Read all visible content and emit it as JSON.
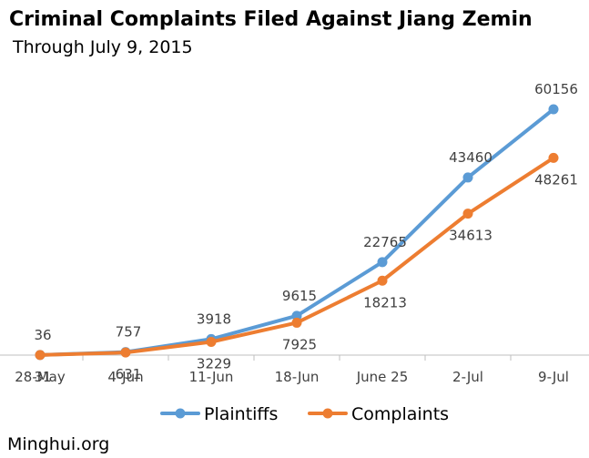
{
  "chart_data": {
    "type": "line",
    "title": "Criminal Complaints Filed Against Jiang Zemin",
    "subtitle": "Through July 9, 2015",
    "categories": [
      "28-May",
      "4-Jun",
      "11-Jun",
      "18-Jun",
      "June 25",
      "2-Jul",
      "9-Jul"
    ],
    "series": [
      {
        "name": "Plaintiffs",
        "values": [
          36,
          757,
          3918,
          9615,
          22765,
          43460,
          60156
        ]
      },
      {
        "name": "Complaints",
        "values": [
          31,
          631,
          3229,
          7925,
          18213,
          34613,
          48261
        ]
      }
    ],
    "ylim": [
      0,
      70000
    ],
    "grid": false,
    "legend": "bottom",
    "colors": {
      "Plaintiffs": "#5b9bd5",
      "Complaints": "#ed7d31"
    }
  },
  "source": "Minghui.org"
}
